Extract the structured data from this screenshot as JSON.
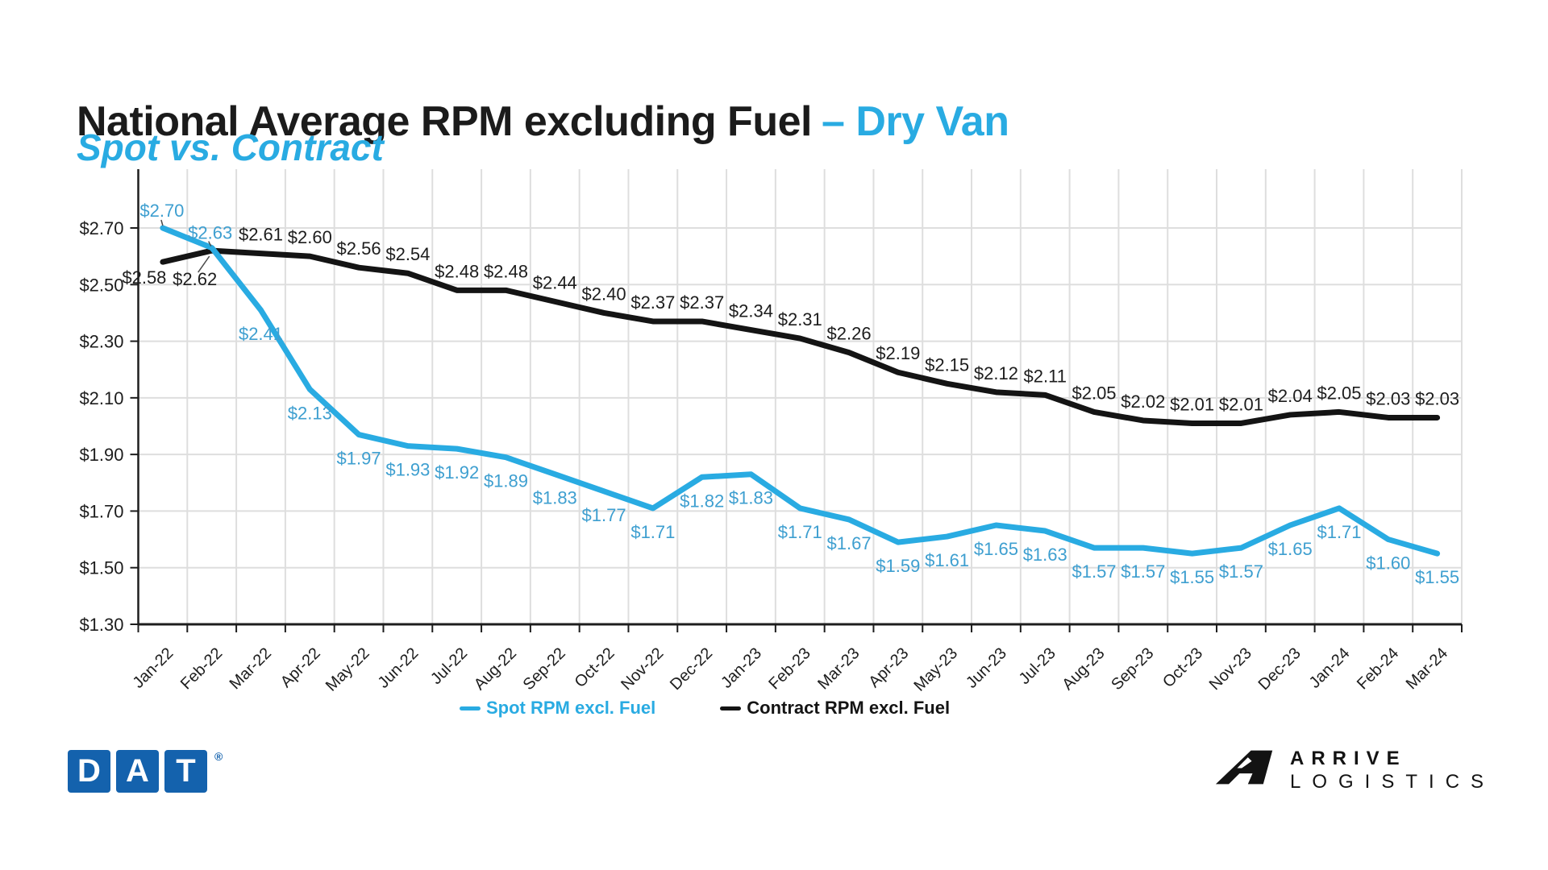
{
  "title": {
    "main": "National Average RPM excluding Fuel",
    "accent": "– Dry Van",
    "subtitle": "Spot vs. Contract"
  },
  "colors": {
    "accent_blue": "#29abe2",
    "spot_line": "#29abe2",
    "spot_label": "#3e9fd0",
    "contract_line": "#141414",
    "contract_label": "#1d1d1d",
    "grid": "#dedede",
    "axis": "#1d1d1d",
    "leader": "#4a4a4a",
    "dat_blue": "#1462ad",
    "logo_black": "#131313"
  },
  "chart_data": {
    "type": "line",
    "title": "National Average RPM excluding Fuel – Dry Van",
    "subtitle": "Spot vs. Contract",
    "categories": [
      "Jan-22",
      "Feb-22",
      "Mar-22",
      "Apr-22",
      "May-22",
      "Jun-22",
      "Jul-22",
      "Aug-22",
      "Sep-22",
      "Oct-22",
      "Nov-22",
      "Dec-22",
      "Jan-23",
      "Feb-23",
      "Mar-23",
      "Apr-23",
      "May-23",
      "Jun-23",
      "Jul-23",
      "Aug-23",
      "Sep-23",
      "Oct-23",
      "Nov-23",
      "Dec-23",
      "Jan-24",
      "Feb-24",
      "Mar-24"
    ],
    "series": [
      {
        "name": "Spot RPM excl. Fuel",
        "color": "#29abe2",
        "values": [
          2.7,
          2.63,
          2.41,
          2.13,
          1.97,
          1.93,
          1.92,
          1.89,
          1.83,
          1.77,
          1.71,
          1.82,
          1.83,
          1.71,
          1.67,
          1.59,
          1.61,
          1.65,
          1.63,
          1.57,
          1.57,
          1.55,
          1.57,
          1.65,
          1.71,
          1.6,
          1.55
        ]
      },
      {
        "name": "Contract RPM excl. Fuel",
        "color": "#141414",
        "values": [
          2.58,
          2.62,
          2.61,
          2.6,
          2.56,
          2.54,
          2.48,
          2.48,
          2.44,
          2.4,
          2.37,
          2.37,
          2.34,
          2.31,
          2.26,
          2.19,
          2.15,
          2.12,
          2.11,
          2.05,
          2.02,
          2.01,
          2.01,
          2.04,
          2.05,
          2.03,
          2.03
        ]
      }
    ],
    "ylim": [
      1.3,
      2.7
    ],
    "ytick_step": 0.2,
    "value_prefix": "$",
    "grid": true,
    "data_labels": true,
    "legend_position": "bottom"
  },
  "logos": {
    "dat": {
      "letters": [
        "D",
        "A",
        "T"
      ],
      "reg_mark": "®"
    },
    "arrive": {
      "line1": "ARRIVE",
      "line2": "LOGISTICS"
    }
  }
}
